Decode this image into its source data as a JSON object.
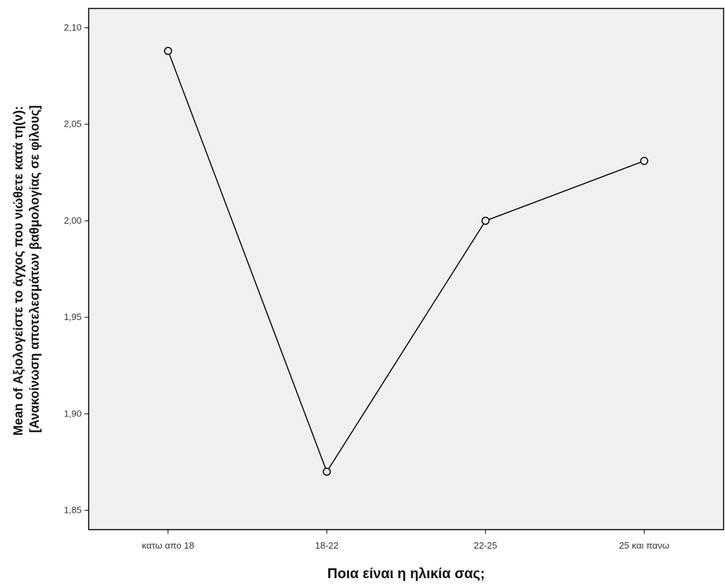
{
  "chart_data": {
    "type": "line",
    "title": "",
    "xlabel": "Ποια είναι η ηλικία σας;",
    "ylabel_lines": [
      "Mean of Αξιολογείστε το άγχος που νιώθετε κατά τη(ν):",
      "[Ανακοίνωση αποτελεσμάτων βαθμολογίας σε φίλους]"
    ],
    "categories": [
      "κατω απο 18",
      "18-22",
      "22-25",
      "25 και πανω"
    ],
    "values": [
      2.088,
      1.87,
      2.0,
      2.031
    ],
    "ylim": [
      1.84,
      2.11
    ],
    "yticks": [
      1.85,
      1.9,
      1.95,
      2.0,
      2.05,
      2.1
    ],
    "ytick_labels": [
      "1,85",
      "1,90",
      "1,95",
      "2,00",
      "2,05",
      "2,10"
    ],
    "grid": false,
    "colors": {
      "plot_background": "#f0f0f0",
      "line": "#000000",
      "marker_fill": "#f0f0f0"
    }
  }
}
